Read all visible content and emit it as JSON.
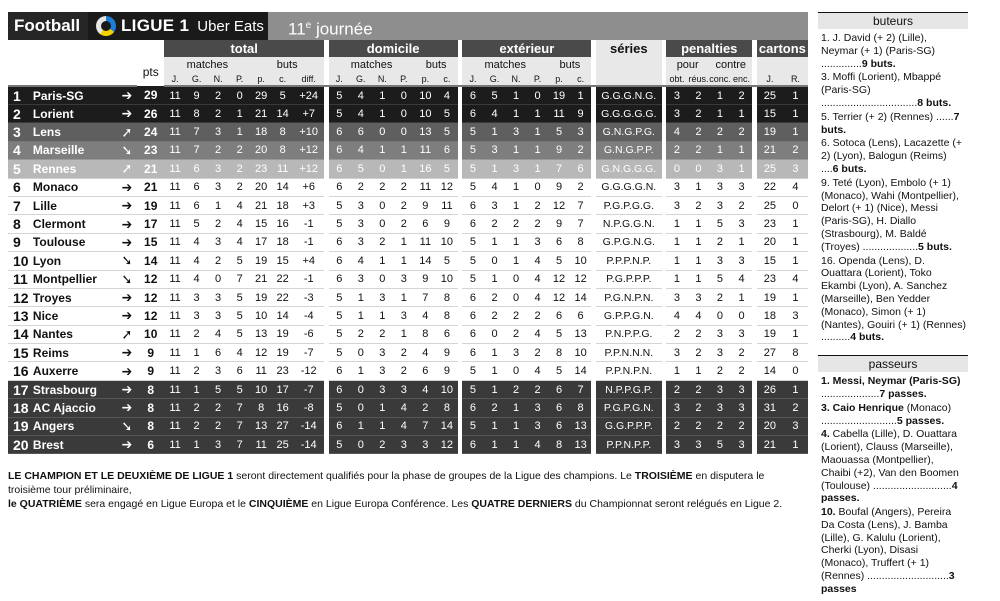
{
  "header": {
    "sport": "Football",
    "competition": "LIGUE 1",
    "sponsor": "Uber Eats",
    "round_number": "11",
    "round_suffix": "e",
    "round_word": "journée"
  },
  "columns": {
    "groups": [
      "total",
      "domicile",
      "extérieur",
      "séries",
      "penalties",
      "cartons"
    ],
    "subgroups": {
      "matches": "matches",
      "buts": "buts",
      "pour": "pour",
      "contre": "contre"
    },
    "pts": "pts",
    "cols_total": [
      "J.",
      "G.",
      "N.",
      "P.",
      "p.",
      "c.",
      "diff."
    ],
    "cols_home": [
      "J.",
      "G.",
      "N.",
      "P.",
      "p.",
      "c."
    ],
    "cols_away": [
      "J.",
      "G.",
      "N.",
      "P.",
      "p.",
      "c."
    ],
    "cols_pen": [
      "obt.",
      "réus.",
      "conc.",
      "enc."
    ],
    "cols_cards": [
      "J.",
      "R."
    ]
  },
  "standings": [
    {
      "rank": "1",
      "club": "Paris-SG",
      "arrow": "right",
      "pts": "29",
      "t": [
        "11",
        "9",
        "2",
        "0",
        "29",
        "5",
        "+24"
      ],
      "h": [
        "5",
        "4",
        "1",
        "0",
        "10",
        "4"
      ],
      "a": [
        "6",
        "5",
        "1",
        "0",
        "19",
        "1"
      ],
      "series": "G.G.G.N.G.",
      "pen": [
        "3",
        "2",
        "1",
        "2"
      ],
      "cards": [
        "25",
        "1"
      ],
      "zone": "cl"
    },
    {
      "rank": "2",
      "club": "Lorient",
      "arrow": "right",
      "pts": "26",
      "t": [
        "11",
        "8",
        "2",
        "1",
        "21",
        "14",
        "+7"
      ],
      "h": [
        "5",
        "4",
        "1",
        "0",
        "10",
        "5"
      ],
      "a": [
        "6",
        "4",
        "1",
        "1",
        "11",
        "9"
      ],
      "series": "G.G.G.G.G.",
      "pen": [
        "3",
        "2",
        "1",
        "1"
      ],
      "cards": [
        "15",
        "1"
      ],
      "zone": "cl"
    },
    {
      "rank": "3",
      "club": "Lens",
      "arrow": "up",
      "pts": "24",
      "t": [
        "11",
        "7",
        "3",
        "1",
        "18",
        "8",
        "+10"
      ],
      "h": [
        "6",
        "6",
        "0",
        "0",
        "13",
        "5"
      ],
      "a": [
        "5",
        "1",
        "3",
        "1",
        "5",
        "3"
      ],
      "series": "G.N.G.P.G.",
      "pen": [
        "4",
        "2",
        "2",
        "2"
      ],
      "cards": [
        "19",
        "1"
      ],
      "zone": "pre"
    },
    {
      "rank": "4",
      "club": "Marseille",
      "arrow": "down",
      "pts": "23",
      "t": [
        "11",
        "7",
        "2",
        "2",
        "20",
        "8",
        "+12"
      ],
      "h": [
        "6",
        "4",
        "1",
        "1",
        "11",
        "6"
      ],
      "a": [
        "5",
        "3",
        "1",
        "1",
        "9",
        "2"
      ],
      "series": "G.N.G.P.P.",
      "pen": [
        "2",
        "2",
        "1",
        "1"
      ],
      "cards": [
        "21",
        "2"
      ],
      "zone": "el"
    },
    {
      "rank": "5",
      "club": "Rennes",
      "arrow": "up",
      "pts": "21",
      "t": [
        "11",
        "6",
        "3",
        "2",
        "23",
        "11",
        "+12"
      ],
      "h": [
        "6",
        "5",
        "0",
        "1",
        "16",
        "5"
      ],
      "a": [
        "5",
        "1",
        "3",
        "1",
        "7",
        "6"
      ],
      "series": "G.N.G.G.G.",
      "pen": [
        "0",
        "0",
        "3",
        "1"
      ],
      "cards": [
        "25",
        "3"
      ],
      "zone": "ecl"
    },
    {
      "rank": "6",
      "club": "Monaco",
      "arrow": "right",
      "pts": "21",
      "t": [
        "11",
        "6",
        "3",
        "2",
        "20",
        "14",
        "+6"
      ],
      "h": [
        "6",
        "2",
        "2",
        "2",
        "11",
        "12"
      ],
      "a": [
        "5",
        "4",
        "1",
        "0",
        "9",
        "2"
      ],
      "series": "G.G.G.G.N.",
      "pen": [
        "3",
        "1",
        "3",
        "3"
      ],
      "cards": [
        "22",
        "4"
      ],
      "zone": "none"
    },
    {
      "rank": "7",
      "club": "Lille",
      "arrow": "right",
      "pts": "19",
      "t": [
        "11",
        "6",
        "1",
        "4",
        "21",
        "18",
        "+3"
      ],
      "h": [
        "5",
        "3",
        "0",
        "2",
        "9",
        "11"
      ],
      "a": [
        "6",
        "3",
        "1",
        "2",
        "12",
        "7"
      ],
      "series": "P.G.P.G.G.",
      "pen": [
        "3",
        "2",
        "3",
        "2"
      ],
      "cards": [
        "25",
        "0"
      ],
      "zone": "none"
    },
    {
      "rank": "8",
      "club": "Clermont",
      "arrow": "right",
      "pts": "17",
      "t": [
        "11",
        "5",
        "2",
        "4",
        "15",
        "16",
        "-1"
      ],
      "h": [
        "5",
        "3",
        "0",
        "2",
        "6",
        "9"
      ],
      "a": [
        "6",
        "2",
        "2",
        "2",
        "9",
        "7"
      ],
      "series": "N.P.G.G.N.",
      "pen": [
        "1",
        "1",
        "5",
        "3"
      ],
      "cards": [
        "23",
        "1"
      ],
      "zone": "none"
    },
    {
      "rank": "9",
      "club": "Toulouse",
      "arrow": "right",
      "pts": "15",
      "t": [
        "11",
        "4",
        "3",
        "4",
        "17",
        "18",
        "-1"
      ],
      "h": [
        "6",
        "3",
        "2",
        "1",
        "11",
        "10"
      ],
      "a": [
        "5",
        "1",
        "1",
        "3",
        "6",
        "8"
      ],
      "series": "G.P.G.N.G.",
      "pen": [
        "1",
        "1",
        "2",
        "1"
      ],
      "cards": [
        "20",
        "1"
      ],
      "zone": "none"
    },
    {
      "rank": "10",
      "club": "Lyon",
      "arrow": "down",
      "pts": "14",
      "t": [
        "11",
        "4",
        "2",
        "5",
        "19",
        "15",
        "+4"
      ],
      "h": [
        "6",
        "4",
        "1",
        "1",
        "14",
        "5"
      ],
      "a": [
        "5",
        "0",
        "1",
        "4",
        "5",
        "10"
      ],
      "series": "P.P.P.N.P.",
      "pen": [
        "1",
        "1",
        "3",
        "3"
      ],
      "cards": [
        "15",
        "1"
      ],
      "zone": "none"
    },
    {
      "rank": "11",
      "club": "Montpellier",
      "arrow": "down",
      "pts": "12",
      "t": [
        "11",
        "4",
        "0",
        "7",
        "21",
        "22",
        "-1"
      ],
      "h": [
        "6",
        "3",
        "0",
        "3",
        "9",
        "10"
      ],
      "a": [
        "5",
        "1",
        "0",
        "4",
        "12",
        "12"
      ],
      "series": "P.G.P.P.P.",
      "pen": [
        "1",
        "1",
        "5",
        "4"
      ],
      "cards": [
        "23",
        "4"
      ],
      "zone": "none"
    },
    {
      "rank": "12",
      "club": "Troyes",
      "arrow": "right",
      "pts": "12",
      "t": [
        "11",
        "3",
        "3",
        "5",
        "19",
        "22",
        "-3"
      ],
      "h": [
        "5",
        "1",
        "3",
        "1",
        "7",
        "8"
      ],
      "a": [
        "6",
        "2",
        "0",
        "4",
        "12",
        "14"
      ],
      "series": "P.G.N.P.N.",
      "pen": [
        "3",
        "3",
        "2",
        "1"
      ],
      "cards": [
        "19",
        "1"
      ],
      "zone": "none"
    },
    {
      "rank": "13",
      "club": "Nice",
      "arrow": "right",
      "pts": "12",
      "t": [
        "11",
        "3",
        "3",
        "5",
        "10",
        "14",
        "-4"
      ],
      "h": [
        "5",
        "1",
        "1",
        "3",
        "4",
        "8"
      ],
      "a": [
        "6",
        "2",
        "2",
        "2",
        "6",
        "6"
      ],
      "series": "G.P.P.G.N.",
      "pen": [
        "4",
        "4",
        "0",
        "0"
      ],
      "cards": [
        "18",
        "3"
      ],
      "zone": "none"
    },
    {
      "rank": "14",
      "club": "Nantes",
      "arrow": "up",
      "pts": "10",
      "t": [
        "11",
        "2",
        "4",
        "5",
        "13",
        "19",
        "-6"
      ],
      "h": [
        "5",
        "2",
        "2",
        "1",
        "8",
        "6"
      ],
      "a": [
        "6",
        "0",
        "2",
        "4",
        "5",
        "13"
      ],
      "series": "P.N.P.P.G.",
      "pen": [
        "2",
        "2",
        "3",
        "3"
      ],
      "cards": [
        "19",
        "1"
      ],
      "zone": "none"
    },
    {
      "rank": "15",
      "club": "Reims",
      "arrow": "right",
      "pts": "9",
      "t": [
        "11",
        "1",
        "6",
        "4",
        "12",
        "19",
        "-7"
      ],
      "h": [
        "5",
        "0",
        "3",
        "2",
        "4",
        "9"
      ],
      "a": [
        "6",
        "1",
        "3",
        "2",
        "8",
        "10"
      ],
      "series": "P.P.N.N.N.",
      "pen": [
        "3",
        "2",
        "3",
        "2"
      ],
      "cards": [
        "27",
        "8"
      ],
      "zone": "none"
    },
    {
      "rank": "16",
      "club": "Auxerre",
      "arrow": "right",
      "pts": "9",
      "t": [
        "11",
        "2",
        "3",
        "6",
        "11",
        "23",
        "-12"
      ],
      "h": [
        "6",
        "1",
        "3",
        "2",
        "6",
        "9"
      ],
      "a": [
        "5",
        "1",
        "0",
        "4",
        "5",
        "14"
      ],
      "series": "P.P.N.P.N.",
      "pen": [
        "1",
        "1",
        "2",
        "2"
      ],
      "cards": [
        "14",
        "0"
      ],
      "zone": "none"
    },
    {
      "rank": "17",
      "club": "Strasbourg",
      "arrow": "right",
      "pts": "8",
      "t": [
        "11",
        "1",
        "5",
        "5",
        "10",
        "17",
        "-7"
      ],
      "h": [
        "6",
        "0",
        "3",
        "3",
        "4",
        "10"
      ],
      "a": [
        "5",
        "1",
        "2",
        "2",
        "6",
        "7"
      ],
      "series": "N.P.P.G.P.",
      "pen": [
        "2",
        "2",
        "3",
        "3"
      ],
      "cards": [
        "26",
        "1"
      ],
      "zone": "rel"
    },
    {
      "rank": "18",
      "club": "AC Ajaccio",
      "arrow": "right",
      "pts": "8",
      "t": [
        "11",
        "2",
        "2",
        "7",
        "8",
        "16",
        "-8"
      ],
      "h": [
        "5",
        "0",
        "1",
        "4",
        "2",
        "8"
      ],
      "a": [
        "6",
        "2",
        "1",
        "3",
        "6",
        "8"
      ],
      "series": "P.G.P.G.N.",
      "pen": [
        "3",
        "2",
        "3",
        "3"
      ],
      "cards": [
        "31",
        "2"
      ],
      "zone": "rel"
    },
    {
      "rank": "19",
      "club": "Angers",
      "arrow": "down",
      "pts": "8",
      "t": [
        "11",
        "2",
        "2",
        "7",
        "13",
        "27",
        "-14"
      ],
      "h": [
        "6",
        "1",
        "1",
        "4",
        "7",
        "14"
      ],
      "a": [
        "5",
        "1",
        "1",
        "3",
        "6",
        "13"
      ],
      "series": "G.G.P.P.P.",
      "pen": [
        "2",
        "2",
        "2",
        "2"
      ],
      "cards": [
        "20",
        "3"
      ],
      "zone": "rel"
    },
    {
      "rank": "20",
      "club": "Brest",
      "arrow": "right",
      "pts": "6",
      "t": [
        "11",
        "1",
        "3",
        "7",
        "11",
        "25",
        "-14"
      ],
      "h": [
        "5",
        "0",
        "2",
        "3",
        "3",
        "12"
      ],
      "a": [
        "6",
        "1",
        "1",
        "4",
        "8",
        "13"
      ],
      "series": "P.P.N.P.P.",
      "pen": [
        "3",
        "3",
        "5",
        "3"
      ],
      "cards": [
        "21",
        "1"
      ],
      "zone": "rel"
    }
  ],
  "arrows": {
    "right": "➔",
    "up": "➚",
    "down": "➘"
  },
  "footnote": {
    "b1": "LE CHAMPION ET LE DEUXIÈME DE LIGUE 1",
    "t1": " seront directement qualifiés pour la phase de groupes de la Ligue des champions. Le ",
    "b2": "TROISIÈME",
    "t2": " en disputera le troisième tour préliminaire, ",
    "b3": "le QUATRIÈME",
    "t3": " sera engagé en Ligue Europa et le ",
    "b4": "CINQUIÈME",
    "t4": " en Ligue Europa Conférence. Les ",
    "b5": "QUATRE DERNIERS",
    "t5": " du Championnat seront relégués en Ligue 2."
  },
  "buteurs": {
    "title": "buteurs",
    "entries": [
      {
        "text": "1. J. David (+ 2) (Lille), Neymar (+ 1) (Paris-SG) ..............",
        "count": "9 buts."
      },
      {
        "text": "3. Moffi (Lorient), Mbappé (Paris-SG) .................................",
        "count": "8 buts."
      },
      {
        "text": "5. Terrier (+ 2) (Rennes) ......",
        "count": "7 buts."
      },
      {
        "text": "6. Sotoca (Lens), Lacazette (+ 2) (Lyon), Balogun (Reims) ....",
        "count": "6 buts."
      },
      {
        "text": "9. Teté (Lyon), Embolo (+ 1) (Monaco), Wahi (Montpellier), Delort (+ 1) (Nice), Messi (Paris-SG), H. Diallo (Strasbourg), M. Baldé (Troyes) ...................",
        "count": "5 buts."
      },
      {
        "text": "16. Openda (Lens), D. Ouattara (Lorient), Toko Ekambi (Lyon), A. Sanchez (Marseille), Ben Yedder (Monaco), Simon (+ 1) (Nantes), Gouiri (+ 1) (Rennes) ..........",
        "count": "4 buts."
      }
    ]
  },
  "passeurs": {
    "title": "passeurs",
    "entries": [
      {
        "name": "1. Messi, Neymar (Paris-SG)",
        "dots": " ....................",
        "count": "7 passes."
      },
      {
        "name": "3. Caio Henrique",
        "dots": " (Monaco) ..........................",
        "count": "5 passes."
      },
      {
        "name": "4.",
        "dots": " Cabella (Lille), D. Ouattara (Lorient), Clauss (Marseille), Maouassa (Montpellier), Chaibi (+2), Van den Boomen (Toulouse) ...........................",
        "count": "4 passes."
      },
      {
        "name": "10.",
        "dots": " Boufal (Angers), Pereira Da Costa (Lens), J. Bamba (Lille), G. Kalulu (Lorient), Cherki (Lyon), Disasi (Monaco), Truffert (+ 1) (Rennes) ............................",
        "count": "3 passes"
      }
    ]
  }
}
